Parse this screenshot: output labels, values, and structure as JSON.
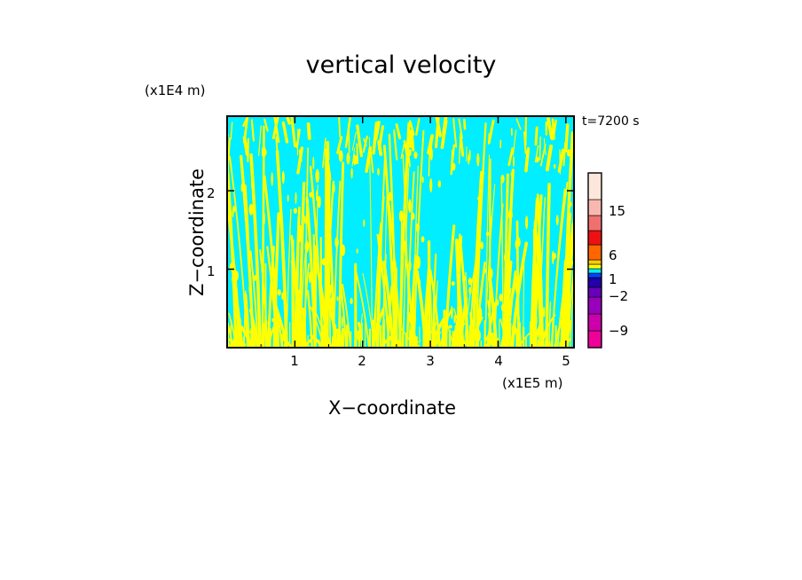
{
  "chart_data": {
    "type": "heatmap",
    "title": "vertical velocity",
    "xlabel": "X−coordinate",
    "ylabel": "Z−coordinate",
    "x_unit": "(x1E5 m)",
    "z_unit": "(x1E4 m)",
    "time_label": "t=7200 s",
    "xlim": [
      0,
      5.12
    ],
    "zlim": [
      0,
      2.95
    ],
    "x_ticks": [
      {
        "value": 1,
        "label": "1"
      },
      {
        "value": 2,
        "label": "2"
      },
      {
        "value": 3,
        "label": "3"
      },
      {
        "value": 4,
        "label": "4"
      },
      {
        "value": 5,
        "label": "5"
      }
    ],
    "z_ticks": [
      {
        "value": 1,
        "label": "1"
      },
      {
        "value": 2,
        "label": "2"
      }
    ],
    "background_color": "#00eeff",
    "feature_color": "#ffff00",
    "colorbar": {
      "levels": [
        {
          "color": "#ee0099"
        },
        {
          "color": "#cc00aa"
        },
        {
          "color": "#9900bb"
        },
        {
          "color": "#6600bb"
        },
        {
          "color": "#2200aa"
        },
        {
          "color": "#0044ff"
        },
        {
          "color": "#00eeff"
        },
        {
          "color": "#ffff00"
        },
        {
          "color": "#ffcc00"
        },
        {
          "color": "#ff6600"
        },
        {
          "color": "#ee1111"
        },
        {
          "color": "#f07070"
        },
        {
          "color": "#f8b8b0"
        },
        {
          "color": "#fde6dc"
        }
      ],
      "tick_labels": [
        {
          "label": "15",
          "level": 11
        },
        {
          "label": "6",
          "level": 9
        },
        {
          "label": "1",
          "level": 7
        },
        {
          "label": "−2",
          "level": 5.5
        },
        {
          "label": "−9",
          "level": 1
        }
      ]
    }
  }
}
